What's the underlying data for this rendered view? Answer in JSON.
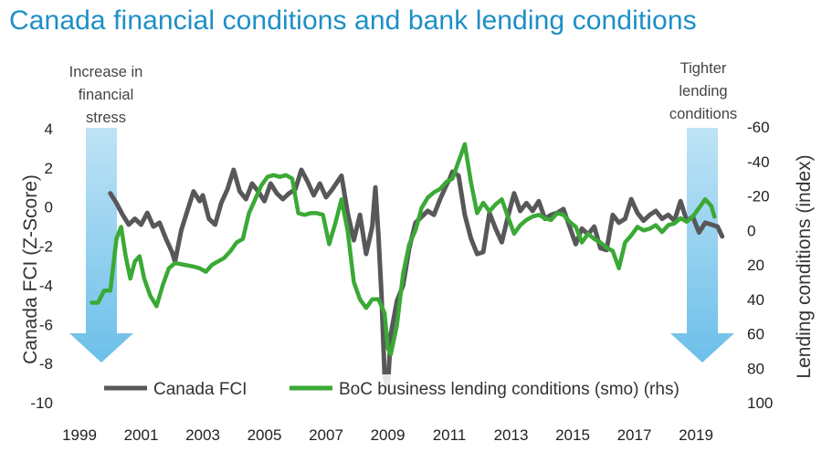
{
  "chart_data": {
    "type": "line",
    "title": "Canada financial conditions and bank lending conditions",
    "ylabel": "Canada FCI (Z-Score)",
    "y2label": "Lending conditions (index)",
    "ylim": [
      -10,
      4
    ],
    "y2lim": [
      100,
      -60
    ],
    "y_ticks": [
      "4",
      "2",
      "0",
      "-2",
      "-4",
      "-6",
      "-8",
      "-10"
    ],
    "y2_ticks": [
      "-60",
      "-40",
      "-20",
      "0",
      "20",
      "40",
      "60",
      "80",
      "100"
    ],
    "x_ticks": [
      "1999",
      "2001",
      "2003",
      "2005",
      "2007",
      "2009",
      "2011",
      "2013",
      "2015",
      "2017",
      "2019"
    ],
    "legend_placement": "bottom",
    "grid": false,
    "annotations": {
      "left": [
        "Increase in",
        "financial",
        "stress"
      ],
      "right": [
        "Tighter",
        "lending",
        "conditions"
      ]
    },
    "colors": {
      "title": "#1d8fc6",
      "fci": "#58585a",
      "boc": "#3aa935",
      "arrow": "#7dc6ec"
    },
    "series": [
      {
        "name": "Canada FCI",
        "axis": "left",
        "points": [
          [
            2000.0,
            0.7
          ],
          [
            2000.2,
            0.2
          ],
          [
            2000.4,
            -0.4
          ],
          [
            2000.6,
            -0.9
          ],
          [
            2000.8,
            -0.6
          ],
          [
            2001.0,
            -0.9
          ],
          [
            2001.2,
            -0.3
          ],
          [
            2001.4,
            -1.0
          ],
          [
            2001.6,
            -0.8
          ],
          [
            2001.8,
            -1.6
          ],
          [
            2002.0,
            -2.3
          ],
          [
            2002.1,
            -2.8
          ],
          [
            2002.3,
            -1.2
          ],
          [
            2002.5,
            -0.2
          ],
          [
            2002.7,
            0.8
          ],
          [
            2002.9,
            0.3
          ],
          [
            2003.0,
            0.6
          ],
          [
            2003.2,
            -0.6
          ],
          [
            2003.4,
            -0.9
          ],
          [
            2003.6,
            0.2
          ],
          [
            2003.8,
            0.9
          ],
          [
            2004.0,
            1.9
          ],
          [
            2004.2,
            0.8
          ],
          [
            2004.4,
            0.4
          ],
          [
            2004.6,
            1.2
          ],
          [
            2004.8,
            0.8
          ],
          [
            2005.0,
            0.3
          ],
          [
            2005.2,
            1.2
          ],
          [
            2005.4,
            0.7
          ],
          [
            2005.6,
            0.4
          ],
          [
            2005.8,
            0.7
          ],
          [
            2006.0,
            0.9
          ],
          [
            2006.2,
            1.9
          ],
          [
            2006.4,
            1.3
          ],
          [
            2006.6,
            0.6
          ],
          [
            2006.8,
            1.2
          ],
          [
            2007.0,
            0.5
          ],
          [
            2007.2,
            0.9
          ],
          [
            2007.5,
            1.6
          ],
          [
            2007.7,
            -0.3
          ],
          [
            2007.9,
            -1.7
          ],
          [
            2008.1,
            -0.4
          ],
          [
            2008.3,
            -2.4
          ],
          [
            2008.5,
            -1.0
          ],
          [
            2008.6,
            1.0
          ],
          [
            2008.7,
            -1.5
          ],
          [
            2008.8,
            -4.5
          ],
          [
            2008.9,
            -8.6
          ],
          [
            2009.0,
            -9.3
          ],
          [
            2009.1,
            -6.5
          ],
          [
            2009.3,
            -4.8
          ],
          [
            2009.5,
            -4.0
          ],
          [
            2009.7,
            -2.1
          ],
          [
            2009.9,
            -0.8
          ],
          [
            2010.1,
            -0.5
          ],
          [
            2010.3,
            -0.2
          ],
          [
            2010.5,
            -0.4
          ],
          [
            2010.7,
            0.4
          ],
          [
            2010.9,
            1.1
          ],
          [
            2011.0,
            1.4
          ],
          [
            2011.1,
            1.8
          ],
          [
            2011.3,
            1.6
          ],
          [
            2011.5,
            -0.4
          ],
          [
            2011.7,
            -1.6
          ],
          [
            2011.9,
            -2.4
          ],
          [
            2012.1,
            -2.3
          ],
          [
            2012.3,
            -0.3
          ],
          [
            2012.5,
            -1.1
          ],
          [
            2012.7,
            -1.8
          ],
          [
            2012.9,
            -0.5
          ],
          [
            2013.1,
            0.7
          ],
          [
            2013.3,
            -0.2
          ],
          [
            2013.5,
            0.2
          ],
          [
            2013.7,
            -0.2
          ],
          [
            2013.9,
            0.3
          ],
          [
            2014.1,
            -0.6
          ],
          [
            2014.3,
            -0.4
          ],
          [
            2014.5,
            -0.3
          ],
          [
            2014.7,
            -0.1
          ],
          [
            2014.9,
            -1.0
          ],
          [
            2015.1,
            -1.9
          ],
          [
            2015.3,
            -1.1
          ],
          [
            2015.5,
            -1.4
          ],
          [
            2015.7,
            -1.0
          ],
          [
            2015.9,
            -2.1
          ],
          [
            2016.1,
            -2.2
          ],
          [
            2016.3,
            -0.4
          ],
          [
            2016.5,
            -0.8
          ],
          [
            2016.7,
            -0.6
          ],
          [
            2016.9,
            0.4
          ],
          [
            2017.1,
            -0.3
          ],
          [
            2017.3,
            -0.7
          ],
          [
            2017.5,
            -0.4
          ],
          [
            2017.7,
            -0.2
          ],
          [
            2017.9,
            -0.6
          ],
          [
            2018.1,
            -0.4
          ],
          [
            2018.3,
            -0.7
          ],
          [
            2018.5,
            0.3
          ],
          [
            2018.7,
            -0.7
          ],
          [
            2018.9,
            -0.5
          ],
          [
            2019.1,
            -1.3
          ],
          [
            2019.3,
            -0.8
          ],
          [
            2019.5,
            -0.9
          ],
          [
            2019.7,
            -1.0
          ],
          [
            2019.85,
            -1.5
          ]
        ]
      },
      {
        "name": "BoC business lending conditions (smo) (rhs)",
        "axis": "right",
        "points": [
          [
            1999.4,
            42
          ],
          [
            1999.6,
            42
          ],
          [
            1999.8,
            35
          ],
          [
            2000.0,
            35
          ],
          [
            2000.2,
            5
          ],
          [
            2000.35,
            -2
          ],
          [
            2000.5,
            15
          ],
          [
            2000.65,
            28
          ],
          [
            2000.8,
            18
          ],
          [
            2000.95,
            15
          ],
          [
            2001.1,
            28
          ],
          [
            2001.3,
            38
          ],
          [
            2001.5,
            44
          ],
          [
            2001.7,
            32
          ],
          [
            2001.9,
            22
          ],
          [
            2002.1,
            19
          ],
          [
            2002.4,
            20
          ],
          [
            2002.7,
            21
          ],
          [
            2002.9,
            22
          ],
          [
            2003.1,
            24
          ],
          [
            2003.3,
            20
          ],
          [
            2003.5,
            18
          ],
          [
            2003.7,
            16
          ],
          [
            2003.9,
            12
          ],
          [
            2004.1,
            7
          ],
          [
            2004.3,
            5
          ],
          [
            2004.5,
            -10
          ],
          [
            2004.7,
            -18
          ],
          [
            2004.9,
            -26
          ],
          [
            2005.1,
            -31
          ],
          [
            2005.3,
            -32
          ],
          [
            2005.5,
            -31
          ],
          [
            2005.7,
            -32
          ],
          [
            2005.9,
            -30
          ],
          [
            2006.1,
            -10
          ],
          [
            2006.3,
            -9
          ],
          [
            2006.5,
            -10
          ],
          [
            2006.7,
            -10
          ],
          [
            2006.9,
            -9
          ],
          [
            2007.1,
            8
          ],
          [
            2007.3,
            -4
          ],
          [
            2007.5,
            -18
          ],
          [
            2007.7,
            0
          ],
          [
            2007.9,
            30
          ],
          [
            2008.1,
            40
          ],
          [
            2008.3,
            45
          ],
          [
            2008.5,
            40
          ],
          [
            2008.7,
            40
          ],
          [
            2008.9,
            48
          ],
          [
            2009.0,
            68
          ],
          [
            2009.1,
            72
          ],
          [
            2009.3,
            55
          ],
          [
            2009.5,
            25
          ],
          [
            2009.7,
            8
          ],
          [
            2009.9,
            0
          ],
          [
            2010.1,
            -13
          ],
          [
            2010.3,
            -19
          ],
          [
            2010.5,
            -22
          ],
          [
            2010.7,
            -24
          ],
          [
            2010.9,
            -28
          ],
          [
            2011.1,
            -30
          ],
          [
            2011.3,
            -40
          ],
          [
            2011.5,
            -50
          ],
          [
            2011.7,
            -28
          ],
          [
            2011.9,
            -10
          ],
          [
            2012.1,
            -16
          ],
          [
            2012.3,
            -11
          ],
          [
            2012.5,
            -15
          ],
          [
            2012.7,
            -18
          ],
          [
            2012.9,
            -8
          ],
          [
            2013.1,
            2
          ],
          [
            2013.3,
            -3
          ],
          [
            2013.5,
            -6
          ],
          [
            2013.7,
            -8
          ],
          [
            2013.9,
            -9
          ],
          [
            2014.1,
            -7
          ],
          [
            2014.3,
            -6
          ],
          [
            2014.5,
            -10
          ],
          [
            2014.7,
            -9
          ],
          [
            2014.9,
            -5
          ],
          [
            2015.1,
            -2
          ],
          [
            2015.3,
            7
          ],
          [
            2015.5,
            2
          ],
          [
            2015.7,
            5
          ],
          [
            2015.9,
            7
          ],
          [
            2016.1,
            10
          ],
          [
            2016.3,
            12
          ],
          [
            2016.5,
            22
          ],
          [
            2016.7,
            7
          ],
          [
            2016.9,
            3
          ],
          [
            2017.1,
            -2
          ],
          [
            2017.3,
            0
          ],
          [
            2017.5,
            -1
          ],
          [
            2017.7,
            -3
          ],
          [
            2017.9,
            1
          ],
          [
            2018.1,
            -3
          ],
          [
            2018.3,
            -4
          ],
          [
            2018.5,
            -7
          ],
          [
            2018.7,
            -5
          ],
          [
            2018.9,
            -8
          ],
          [
            2019.1,
            -13
          ],
          [
            2019.3,
            -18
          ],
          [
            2019.5,
            -14
          ],
          [
            2019.6,
            -8
          ]
        ]
      }
    ]
  }
}
